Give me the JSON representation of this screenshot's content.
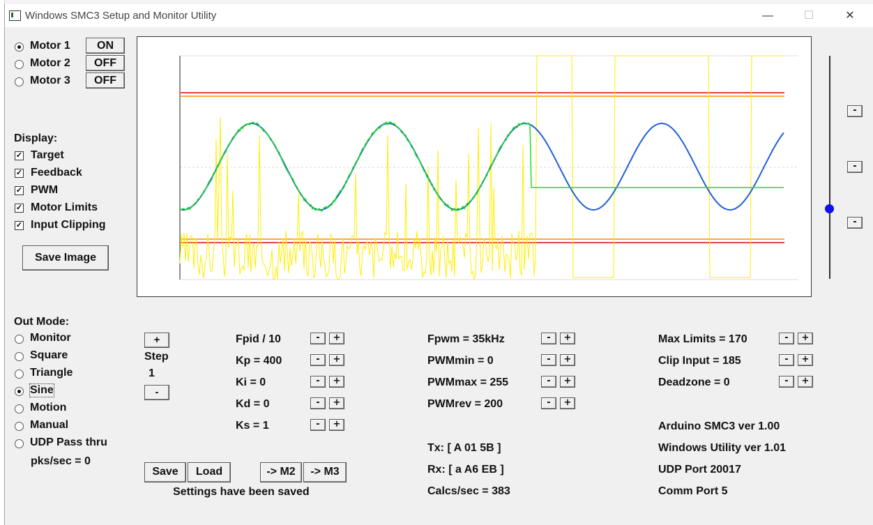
{
  "window": {
    "title": "Windows SMC3 Setup and Monitor Utility",
    "minimize": "—",
    "maximize": "☐",
    "close": "✕"
  },
  "motors": [
    {
      "label": "Motor 1",
      "selected": true,
      "state": "ON"
    },
    {
      "label": "Motor 2",
      "selected": false,
      "state": "OFF"
    },
    {
      "label": "Motor 3",
      "selected": false,
      "state": "OFF"
    }
  ],
  "display": {
    "heading": "Display:",
    "options": [
      {
        "label": "Target",
        "checked": true
      },
      {
        "label": "Feedback",
        "checked": true
      },
      {
        "label": "PWM",
        "checked": true
      },
      {
        "label": "Motor Limits",
        "checked": true
      },
      {
        "label": "Input Clipping",
        "checked": true
      }
    ],
    "save_image": "Save Image"
  },
  "out_mode": {
    "heading": "Out Mode:",
    "options": [
      {
        "label": "Monitor",
        "selected": false
      },
      {
        "label": "Square",
        "selected": false
      },
      {
        "label": "Triangle",
        "selected": false
      },
      {
        "label": "Sine",
        "selected": true
      },
      {
        "label": "Motion",
        "selected": false
      },
      {
        "label": "Manual",
        "selected": false
      },
      {
        "label": "UDP Pass thru",
        "selected": false
      }
    ],
    "pks": "pks/sec = 0"
  },
  "step": {
    "plus": "+",
    "label": "Step",
    "value": "1",
    "minus": "-"
  },
  "pid_params": [
    "Fpid / 10",
    "Kp = 400",
    "Ki = 0",
    "Kd = 0",
    "Ks = 1"
  ],
  "pwm_params": [
    "Fpwm = 35kHz",
    "PWMmin = 0",
    "PWMmax = 255",
    "PWMrev = 200"
  ],
  "limit_params": [
    "Max Limits = 170",
    "Clip Input = 185",
    "Deadzone = 0"
  ],
  "spin": {
    "minus": "-",
    "plus": "+"
  },
  "buttons": {
    "save": "Save",
    "load": "Load",
    "to_m2": "-> M2",
    "to_m3": "-> M3"
  },
  "status": "Settings have been saved",
  "comm": {
    "tx": "Tx: [ A 01 5B ]",
    "rx": "Rx: [ a A6 EB ]",
    "calcs": "Calcs/sec = 383"
  },
  "info": [
    "Arduino SMC3 ver 1.00",
    "Windows Utility ver 1.01",
    "UDP Port 20017",
    "Comm Port 5"
  ],
  "side_buttons": [
    "-",
    "-",
    "-"
  ],
  "colors": {
    "target": "#1f5fd6",
    "feedback": "#22dd22",
    "pwm": "#ffee00",
    "motor_limits": "#ff8800",
    "input_clipping": "#dd0000"
  }
}
